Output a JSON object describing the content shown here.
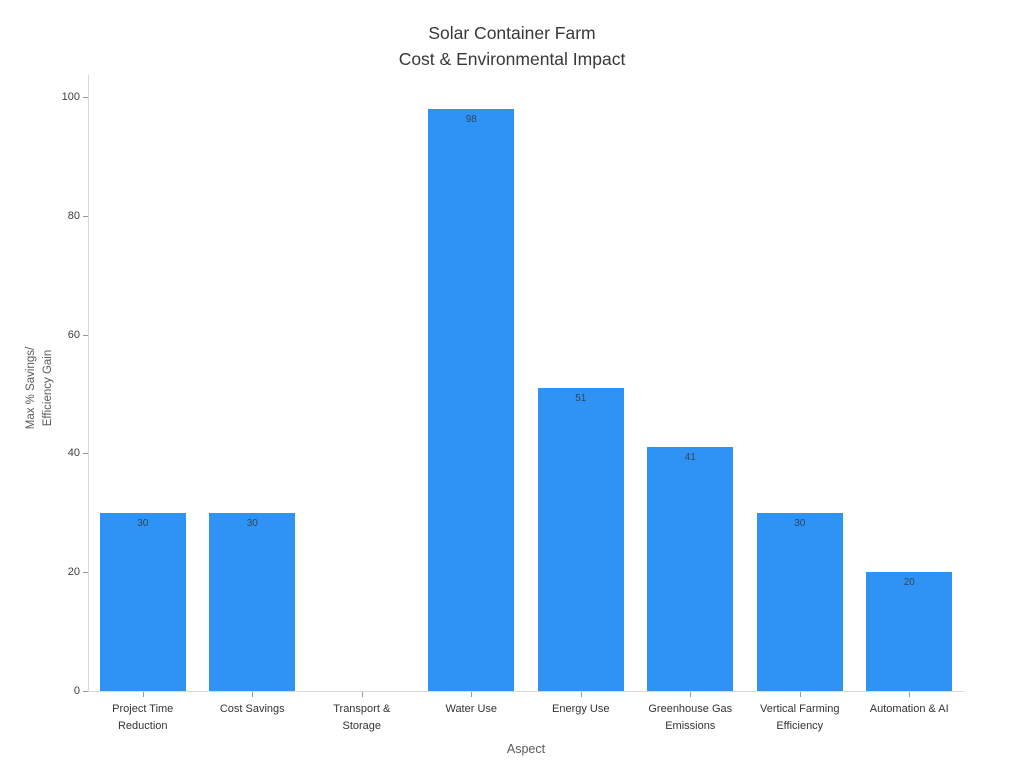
{
  "title": "Solar Container Farm\nCost & Environmental Impact",
  "chart_data": {
    "type": "bar",
    "title": "Solar Container Farm\nCost & Environmental Impact",
    "categories": [
      "Project Time\nReduction",
      "Cost Savings",
      "Transport &\nStorage",
      "Water Use",
      "Energy Use",
      "Greenhouse Gas\nEmissions",
      "Vertical Farming\nEfficiency",
      "Automation & AI"
    ],
    "values": [
      30,
      30,
      0,
      98,
      51,
      41,
      30,
      20
    ],
    "value_labels": [
      "30",
      "30",
      "",
      "98",
      "51",
      "41",
      "30",
      "20"
    ],
    "xlabel": "Aspect",
    "ylabel": "Max % Savings/\nEfficiency Gain",
    "yticks": [
      0,
      20,
      40,
      60,
      80,
      100
    ],
    "ylim": [
      0,
      103.7
    ],
    "grid": false,
    "legend": "none",
    "bar_color": "#2f93f5",
    "value_label_color": "#32455c"
  }
}
